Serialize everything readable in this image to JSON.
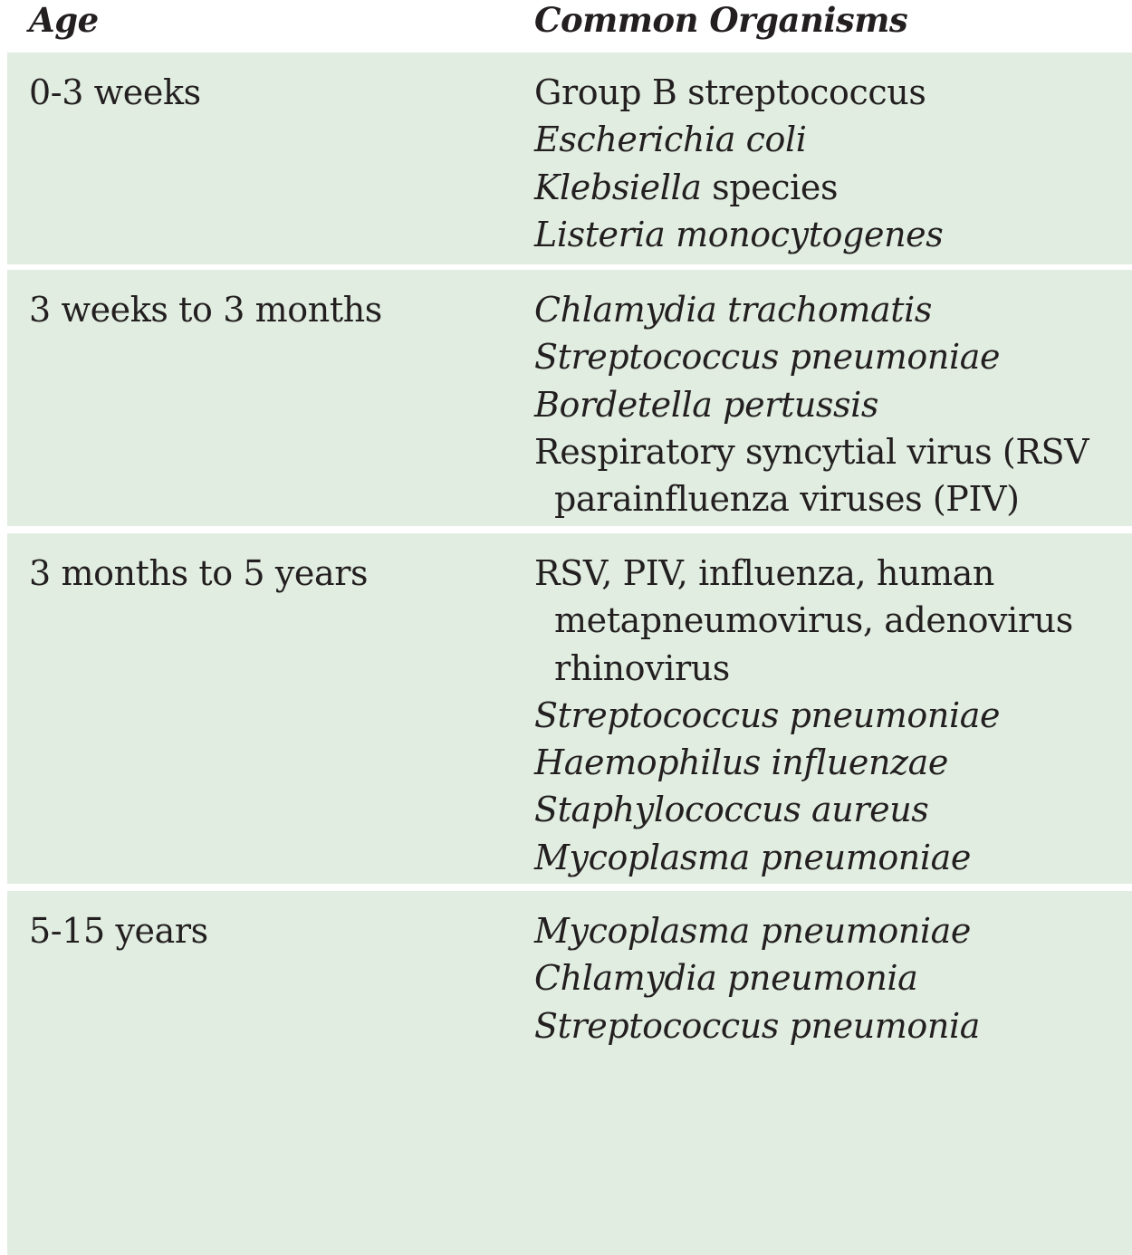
{
  "header": {
    "age": "Age",
    "organisms": "Common Organisms"
  },
  "rows": [
    {
      "age": "0-3 weeks",
      "organisms": [
        {
          "text": "Group B streptococcus"
        },
        {
          "text": "Escherichia coli"
        },
        {
          "text": "Klebsiella",
          "suffix": " species"
        },
        {
          "text": "Listeria monocytogenes"
        }
      ]
    },
    {
      "age": "3 weeks to 3 months",
      "organisms": [
        {
          "text": "Chlamydia trachomatis"
        },
        {
          "text": "Streptococcus pneumoniae"
        },
        {
          "text": "Bordetella pertussis"
        },
        {
          "text": "Respiratory syncytial virus (RSV"
        },
        {
          "text": "parainfluenza viruses (PIV)"
        }
      ]
    },
    {
      "age": "3 months to 5 years",
      "organisms": [
        {
          "text": "RSV, PIV, influenza, human"
        },
        {
          "text": "metapneumovirus, adenovirus"
        },
        {
          "text": "rhinovirus"
        },
        {
          "text": "Streptococcus pneumoniae"
        },
        {
          "text": "Haemophilus influenzae"
        },
        {
          "text": "Staphylococcus aureus"
        },
        {
          "text": "Mycoplasma pneumoniae"
        }
      ]
    },
    {
      "age": "5-15 years",
      "organisms": [
        {
          "text": "Mycoplasma pneumoniae"
        },
        {
          "text": "Chlamydia pneumonia"
        },
        {
          "text": "Streptococcus pneumonia"
        }
      ]
    }
  ],
  "colors": {
    "row_background": "#e0ede0",
    "separator": "#ffffff",
    "text": "#231f20"
  }
}
